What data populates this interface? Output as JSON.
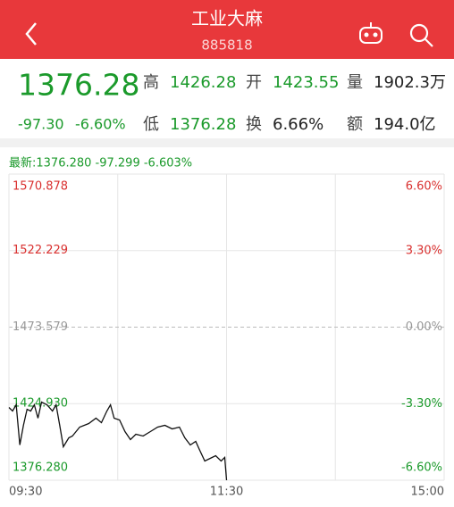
{
  "header": {
    "title": "工业大麻",
    "code": "885818"
  },
  "quote": {
    "price": "1376.28",
    "change": "-97.30",
    "change_pct": "-6.60%",
    "fields": [
      {
        "label": "高",
        "value": "1426.28",
        "color": "#1b9a2b"
      },
      {
        "label": "开",
        "value": "1423.55",
        "color": "#1b9a2b"
      },
      {
        "label": "量",
        "value": "1902.3万",
        "color": "#222222"
      },
      {
        "label": "低",
        "value": "1376.28",
        "color": "#1b9a2b"
      },
      {
        "label": "换",
        "value": "6.66%",
        "color": "#222222"
      },
      {
        "label": "额",
        "value": "194.0亿",
        "color": "#222222"
      }
    ]
  },
  "latest": "最新:1376.280 -97.299 -6.603%",
  "chart_data": {
    "type": "line",
    "color": "#111111",
    "x": [
      0,
      2,
      4,
      6,
      8,
      10,
      12,
      14,
      16,
      18,
      21,
      24,
      26,
      28,
      30,
      33,
      35,
      39,
      44,
      48,
      51,
      54,
      56,
      58,
      61,
      64,
      67,
      70,
      74,
      78,
      82,
      86,
      90,
      94,
      97,
      100,
      103,
      105,
      108,
      111,
      114,
      117,
      119,
      120
    ],
    "values": [
      1422.52,
      1420.25,
      1424.22,
      1398.69,
      1411.17,
      1421.38,
      1420.25,
      1424.22,
      1415.71,
      1425.92,
      1424.22,
      1420.25,
      1424.22,
      1411.17,
      1397.56,
      1403.23,
      1404.37,
      1410.04,
      1412.31,
      1415.71,
      1412.87,
      1420.25,
      1424.22,
      1415.71,
      1414.58,
      1407.2,
      1402.1,
      1405.5,
      1404.37,
      1407.2,
      1410.04,
      1411.17,
      1408.9,
      1410.04,
      1403.23,
      1398.69,
      1400.96,
      1395.85,
      1388.48,
      1390.18,
      1391.88,
      1388.48,
      1390.75,
      1376.28
    ],
    "xlim": [
      0,
      240
    ],
    "xticks": [
      {
        "value": 0,
        "label": "09:30"
      },
      {
        "value": 120,
        "label": "11:30"
      },
      {
        "value": 240,
        "label": "15:00"
      }
    ],
    "ylim": [
      1376.28,
      1570.878
    ],
    "yticks": [
      1570.878,
      1522.229,
      1473.579,
      {
        "value": 1424.93,
        "label": "1424.930"
      },
      {
        "value": 1376.28,
        "label": "1376.280"
      }
    ],
    "y2lim": [
      -6.6,
      6.6
    ],
    "y2ticks": [
      {
        "value": 6.6,
        "label": "6.60%"
      },
      {
        "value": 3.3,
        "label": "3.30%"
      },
      {
        "value": 0,
        "label": "0.00%"
      },
      {
        "value": -3.3,
        "label": "-3.30%"
      },
      {
        "value": -6.6,
        "label": "-6.60%"
      }
    ],
    "grid": true
  }
}
